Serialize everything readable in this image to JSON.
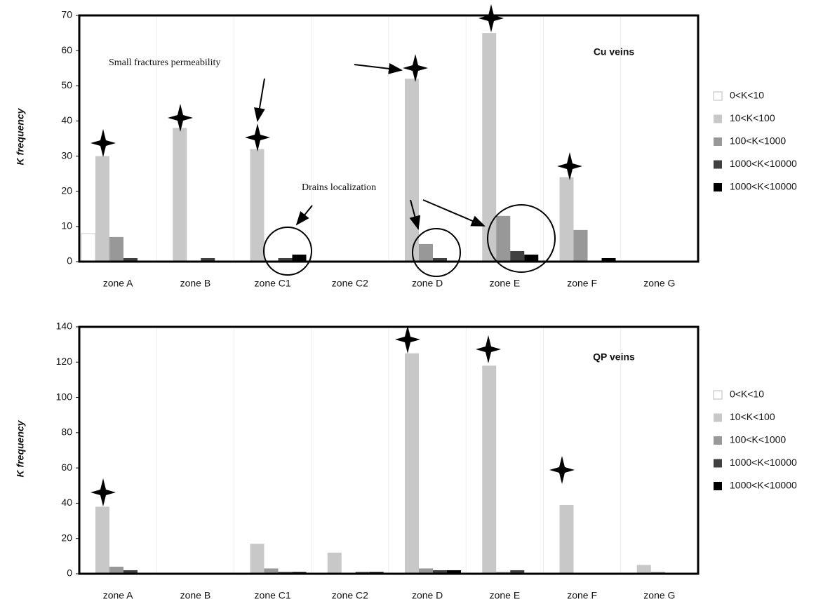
{
  "chart_data": [
    {
      "type": "bar",
      "title": "Cu veins",
      "y_label": "K frequency",
      "annotations": [
        "Small fractures permeability",
        "Drains localization"
      ],
      "categories": [
        "zone A",
        "zone B",
        "zone C1",
        "zone C2",
        "zone D",
        "zone E",
        "zone F",
        "zone G"
      ],
      "series": [
        {
          "name": "0<K<10",
          "color": "#ffffff",
          "values": [
            8,
            0,
            0,
            0,
            0,
            0,
            0,
            0
          ]
        },
        {
          "name": "10<K<100",
          "color": "#c8c8c8",
          "values": [
            30,
            38,
            32,
            0,
            52,
            65,
            24,
            0
          ]
        },
        {
          "name": "100<K<1000",
          "color": "#989898",
          "values": [
            7,
            0,
            0,
            0,
            5,
            13,
            9,
            0
          ]
        },
        {
          "name": "1000<K<10000",
          "color": "#404040",
          "values": [
            1,
            1,
            1,
            0,
            1,
            3,
            0,
            0
          ]
        },
        {
          "name": "1000<K<10000",
          "color": "#000000",
          "values": [
            0,
            0,
            2,
            0,
            0,
            2,
            1,
            0
          ]
        }
      ],
      "ylim": [
        0,
        70
      ],
      "yticks": [
        0,
        10,
        20,
        30,
        40,
        50,
        60,
        70
      ]
    },
    {
      "type": "bar",
      "title": "QP veins",
      "y_label": "K frequency",
      "categories": [
        "zone A",
        "zone B",
        "zone C1",
        "zone C2",
        "zone D",
        "zone E",
        "zone F",
        "zone G"
      ],
      "series": [
        {
          "name": "0<K<10",
          "color": "#ffffff",
          "values": [
            0,
            0,
            0,
            0,
            0,
            0,
            0,
            0
          ]
        },
        {
          "name": "10<K<100",
          "color": "#c8c8c8",
          "values": [
            38,
            0,
            17,
            12,
            125,
            118,
            39,
            5
          ]
        },
        {
          "name": "100<K<1000",
          "color": "#989898",
          "values": [
            4,
            0,
            3,
            0,
            3,
            1,
            0,
            1
          ]
        },
        {
          "name": "1000<K<10000",
          "color": "#404040",
          "values": [
            2,
            0,
            1,
            1,
            2,
            2,
            0,
            0
          ]
        },
        {
          "name": "1000<K<10000",
          "color": "#000000",
          "values": [
            0,
            0,
            1,
            1,
            2,
            0,
            0,
            0
          ]
        }
      ],
      "ylim": [
        0,
        140
      ],
      "yticks": [
        0,
        20,
        40,
        60,
        80,
        100,
        120,
        140
      ]
    }
  ]
}
